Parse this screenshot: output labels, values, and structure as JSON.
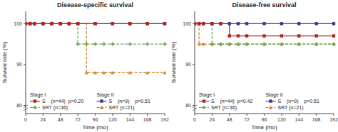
{
  "chart_data": [
    {
      "type": "step",
      "title": "Disease-specific survival",
      "x_label": "Time (mo)",
      "y_label": "Survival rate (%)",
      "xlim": [
        0,
        192
      ],
      "xticks": [
        0,
        24,
        48,
        72,
        96,
        120,
        144,
        168,
        192
      ],
      "ylim": [
        78,
        103
      ],
      "yticks": [
        80,
        90,
        100
      ],
      "legend": "lower left",
      "annotations": [
        "Stage I",
        "Stage II"
      ],
      "series": [
        {
          "name": "S    (n=44)  p=0.20",
          "color": "#b22222",
          "marker": "square",
          "line_style": "solid",
          "x": [
            0,
            6,
            12,
            24,
            36,
            48,
            60,
            72,
            96,
            120,
            144,
            168,
            192
          ],
          "values": [
            100,
            100,
            100,
            100,
            100,
            100,
            100,
            100,
            100,
            100,
            100,
            100,
            100
          ]
        },
        {
          "name": "SRT (n=36)",
          "color": "#6aaa50",
          "marker": "plus",
          "line_style": "dashed",
          "x": [
            0,
            6,
            12,
            24,
            36,
            48,
            60,
            72,
            84,
            96,
            108,
            120,
            144,
            168,
            192
          ],
          "values": [
            100,
            100,
            100,
            100,
            100,
            100,
            100,
            95,
            95,
            95,
            95,
            95,
            95,
            95,
            95
          ]
        },
        {
          "name": "S    (n=9)    p=0.51",
          "color": "#3a3a8c",
          "marker": "square",
          "line_style": "solid",
          "x": [
            0,
            6,
            12,
            24,
            36,
            48,
            60,
            72,
            96,
            120,
            144,
            168,
            192
          ],
          "values": [
            100,
            100,
            100,
            100,
            100,
            100,
            100,
            100,
            100,
            100,
            100,
            100,
            100
          ]
        },
        {
          "name": "SRT (n=21)",
          "color": "#d4832a",
          "marker": "triangle",
          "line_style": "dashed",
          "x": [
            0,
            6,
            12,
            24,
            36,
            48,
            60,
            72,
            84,
            96,
            108,
            120,
            144,
            168,
            192
          ],
          "values": [
            100,
            100,
            100,
            100,
            100,
            100,
            100,
            100,
            88,
            88,
            88,
            88,
            88,
            88,
            88
          ]
        }
      ]
    },
    {
      "type": "step",
      "title": "Disease-free survival",
      "x_label": "Time (mo)",
      "y_label": "Survival rate (%)",
      "xlim": [
        0,
        192
      ],
      "xticks": [
        0,
        24,
        48,
        72,
        96,
        120,
        144,
        168,
        192
      ],
      "ylim": [
        78,
        103
      ],
      "yticks": [
        80,
        90,
        100
      ],
      "legend": "lower left",
      "annotations": [
        "Stage I",
        "Stage II"
      ],
      "series": [
        {
          "name": "S    (n=44)  p=0.42",
          "color": "#b22222",
          "marker": "square",
          "line_style": "solid",
          "x": [
            0,
            6,
            12,
            24,
            36,
            48,
            60,
            72,
            96,
            120,
            144,
            168,
            192
          ],
          "values": [
            100,
            100,
            100,
            100,
            100,
            97,
            97,
            97,
            97,
            97,
            97,
            97,
            97
          ]
        },
        {
          "name": "SRT (n=36)",
          "color": "#6aaa50",
          "marker": "plus",
          "line_style": "dashed",
          "x": [
            0,
            6,
            12,
            24,
            36,
            48,
            60,
            72,
            96,
            120,
            144,
            168,
            192
          ],
          "values": [
            100,
            100,
            100,
            95,
            95,
            95,
            95,
            95,
            95,
            95,
            95,
            95,
            95
          ]
        },
        {
          "name": "S    (n=9)    p=0.51",
          "color": "#3a3a8c",
          "marker": "square",
          "line_style": "solid",
          "x": [
            0,
            6,
            12,
            24,
            36,
            48,
            60,
            72,
            96,
            120,
            144,
            168,
            192
          ],
          "values": [
            100,
            100,
            100,
            100,
            100,
            100,
            100,
            100,
            100,
            100,
            100,
            100,
            100
          ]
        },
        {
          "name": "SRT (n=21)",
          "color": "#d4832a",
          "marker": "triangle",
          "line_style": "dashed",
          "x": [
            0,
            6,
            12,
            24,
            36,
            48,
            60,
            72,
            96,
            120,
            144,
            168,
            192
          ],
          "values": [
            100,
            95,
            95,
            95,
            95,
            95,
            95,
            95,
            95,
            95,
            95,
            95,
            95
          ]
        }
      ]
    }
  ]
}
